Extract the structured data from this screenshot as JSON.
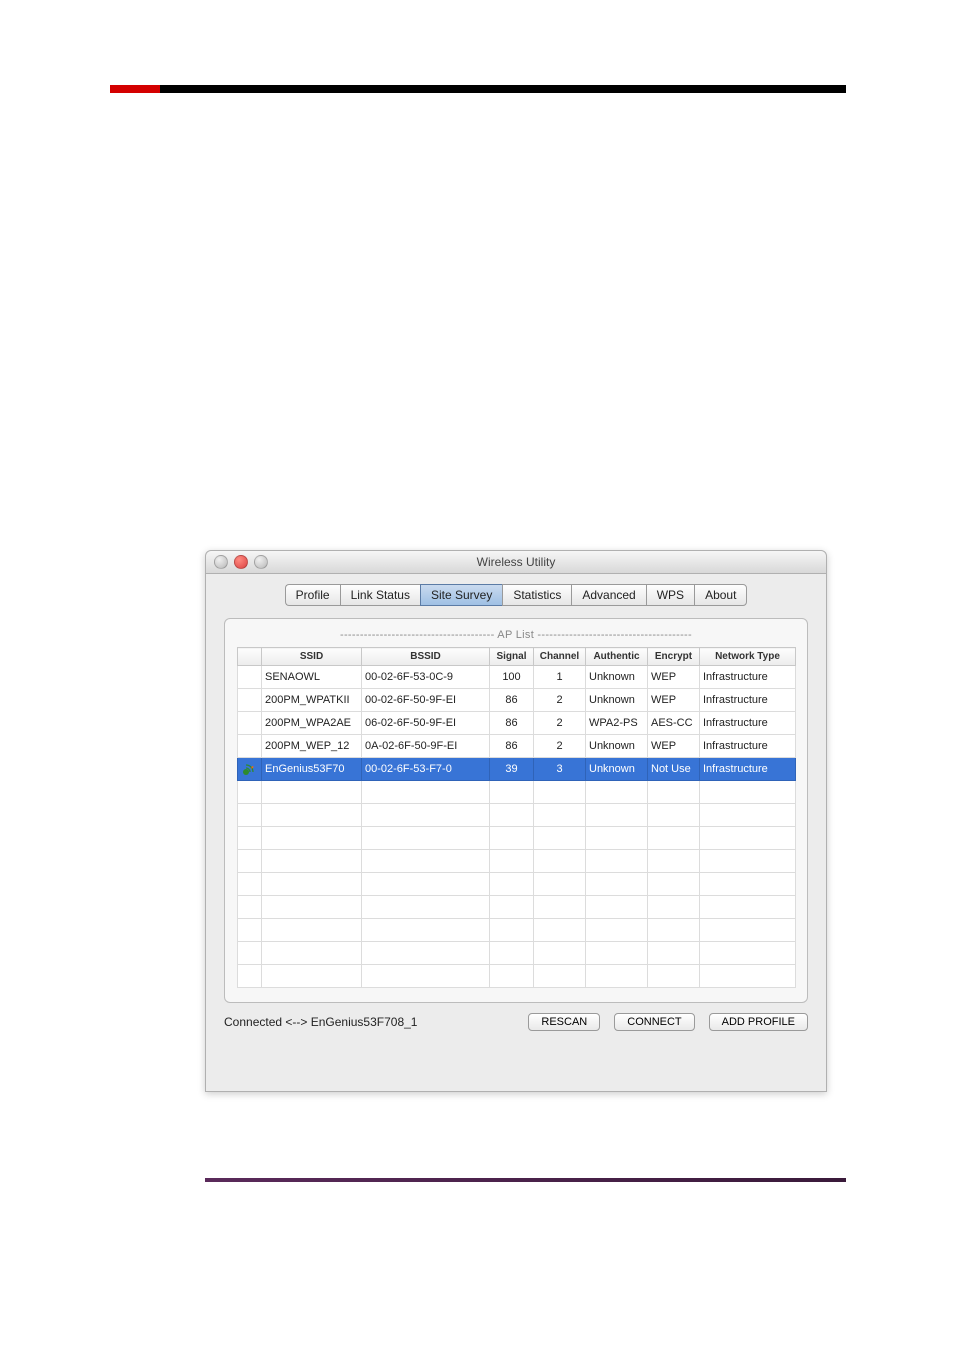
{
  "window": {
    "title": "Wireless Utility"
  },
  "tabs": {
    "items": [
      "Profile",
      "Link Status",
      "Site Survey",
      "Statistics",
      "Advanced",
      "WPS",
      "About"
    ],
    "active_index": 2
  },
  "aplist_label": "--------------------------------------- AP List ---------------------------------------",
  "columns": {
    "icon": "",
    "ssid": "SSID",
    "bssid": "BSSID",
    "signal": "Signal",
    "channel": "Channel",
    "auth": "Authentic",
    "encrypt": "Encrypt",
    "nettype": "Network Type"
  },
  "col_widths": {
    "icon": 24,
    "ssid": 100,
    "bssid": 128,
    "signal": 44,
    "channel": 52,
    "auth": 62,
    "encrypt": 52,
    "nettype": 96
  },
  "rows": [
    {
      "connected": false,
      "ssid": "SENAOWL",
      "bssid": "00-02-6F-53-0C-9",
      "signal": "100",
      "channel": "1",
      "auth": "Unknown",
      "encrypt": "WEP",
      "nettype": "Infrastructure"
    },
    {
      "connected": false,
      "ssid": "200PM_WPATKII",
      "bssid": "00-02-6F-50-9F-EI",
      "signal": "86",
      "channel": "2",
      "auth": "Unknown",
      "encrypt": "WEP",
      "nettype": "Infrastructure"
    },
    {
      "connected": false,
      "ssid": "200PM_WPA2AE",
      "bssid": "06-02-6F-50-9F-EI",
      "signal": "86",
      "channel": "2",
      "auth": "WPA2-PS",
      "encrypt": "AES-CC",
      "nettype": "Infrastructure"
    },
    {
      "connected": false,
      "ssid": "200PM_WEP_12",
      "bssid": "0A-02-6F-50-9F-EI",
      "signal": "86",
      "channel": "2",
      "auth": "Unknown",
      "encrypt": "WEP",
      "nettype": "Infrastructure"
    },
    {
      "connected": true,
      "ssid": "EnGenius53F70",
      "bssid": "00-02-6F-53-F7-0",
      "signal": "39",
      "channel": "3",
      "auth": "Unknown",
      "encrypt": "Not Use",
      "nettype": "Infrastructure"
    }
  ],
  "empty_rows": 9,
  "selected_index": 4,
  "status": "Connected <--> EnGenius53F708_1",
  "buttons": {
    "rescan": "RESCAN",
    "connect": "CONNECT",
    "add_profile": "ADD PROFILE"
  },
  "colors": {
    "selection_bg": "#3874d6",
    "selection_fg": "#ffffff",
    "page_accent_red": "#d40000"
  }
}
